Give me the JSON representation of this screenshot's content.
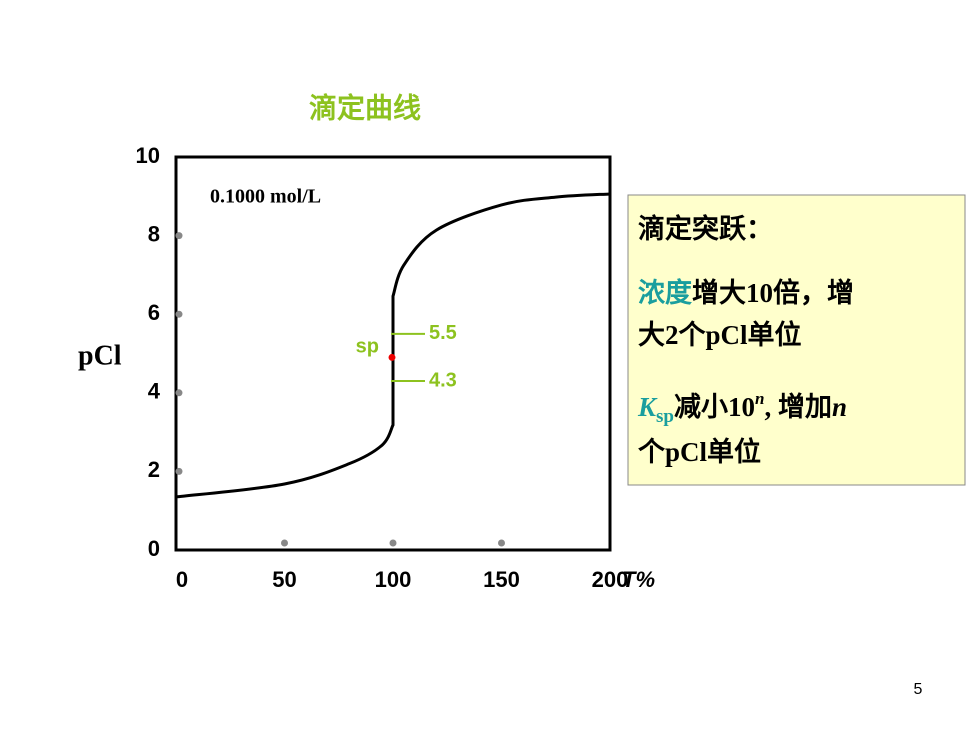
{
  "chart_data": {
    "type": "line",
    "title": "滴定曲线",
    "xlabel": "T%",
    "ylabel": "pCl",
    "x": [
      0,
      50,
      80,
      95,
      100,
      100,
      105,
      120,
      150,
      175,
      200
    ],
    "series": [
      {
        "name": "0.1000 mol/L",
        "color": "#000000",
        "values": [
          1.35,
          1.68,
          2.2,
          2.67,
          3.18,
          6.46,
          7.25,
          8.14,
          8.78,
          8.98,
          9.06
        ]
      }
    ],
    "xlim": [
      0,
      200
    ],
    "ylim": [
      0,
      10
    ],
    "xticks": [
      0,
      50,
      100,
      150,
      200
    ],
    "yticks": [
      0,
      2,
      4,
      6,
      8,
      10
    ],
    "sp": {
      "label": "sp",
      "x": 100,
      "y": 4.9
    },
    "levels": [
      5.5,
      4.3
    ]
  },
  "textbox": {
    "heading": "滴定突跃：",
    "item1": {
      "highlight": "浓度",
      "line1": "增大10倍，增",
      "line2": "大2个pCl单位"
    },
    "item2": {
      "k": "K",
      "sub": "sp",
      "text1": "减小10",
      "sup": "n",
      "text2": ", 增加",
      "n": "n",
      "line2": "个pCl单位"
    }
  },
  "page_number": "5"
}
